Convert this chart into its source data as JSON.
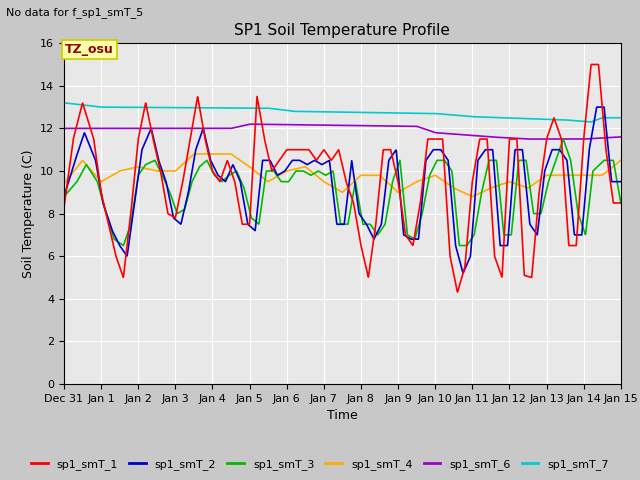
{
  "title": "SP1 Soil Temperature Profile",
  "xlabel": "Time",
  "ylabel": "Soil Temperature (C)",
  "no_data_text": "No data for f_sp1_smT_5",
  "tz_label": "TZ_osu",
  "ylim": [
    0,
    16
  ],
  "yticks": [
    0,
    2,
    4,
    6,
    8,
    10,
    12,
    14,
    16
  ],
  "xtick_labels": [
    "Dec 31",
    "Jan 1",
    "Jan 2",
    "Jan 3",
    "Jan 4",
    "Jan 5",
    "Jan 6",
    "Jan 7",
    "Jan 8",
    "Jan 9",
    "Jan 10",
    "Jan 11",
    "Jan 12",
    "Jan 13",
    "Jan 14",
    "Jan 15"
  ],
  "fig_bg_color": "#c8c8c8",
  "plot_bg_color": "#e8e8e8",
  "series_colors": {
    "sp1_smT_1": "#ff0000",
    "sp1_smT_2": "#0000cc",
    "sp1_smT_3": "#00bb00",
    "sp1_smT_4": "#ffaa00",
    "sp1_smT_6": "#9900cc",
    "sp1_smT_7": "#00cccc"
  },
  "grid_color": "#ffffff",
  "title_fontsize": 11,
  "axis_label_fontsize": 9,
  "tick_fontsize": 8,
  "legend_fontsize": 8
}
